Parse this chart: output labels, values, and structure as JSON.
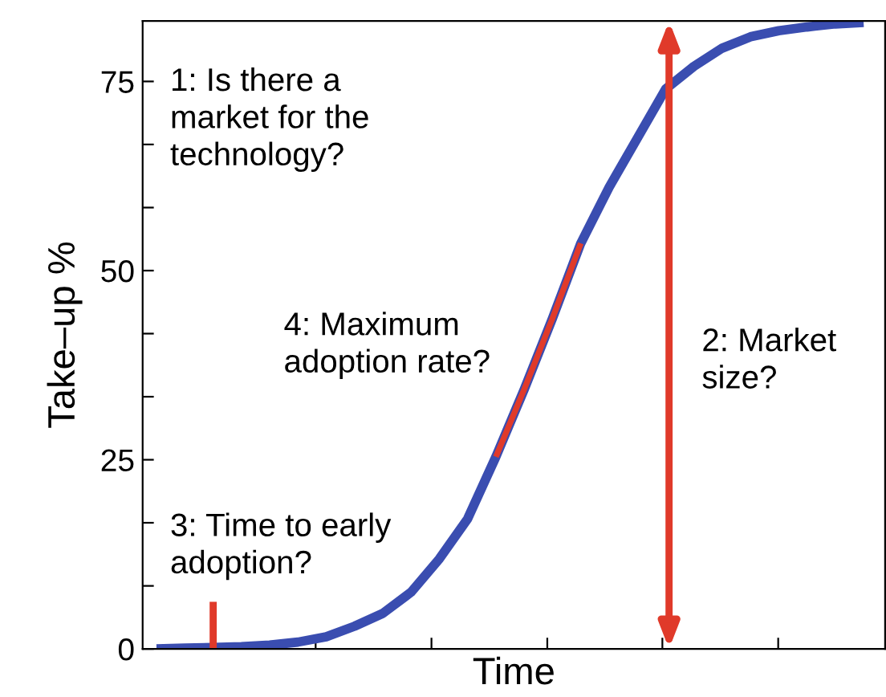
{
  "chart_data": {
    "type": "line",
    "xlabel": "Time",
    "ylabel": "Take–up %",
    "categories": [
      null,
      null,
      null,
      null,
      null,
      null,
      null,
      null,
      null,
      null,
      null,
      null,
      null,
      null,
      null,
      null,
      null,
      null,
      null,
      null,
      null,
      null,
      null,
      null,
      null,
      null
    ],
    "ylim": [
      0,
      83
    ],
    "yticks": [
      0,
      {
        "value": 8.33,
        "label": null
      },
      {
        "value": 16.67,
        "label": null
      },
      25,
      {
        "value": 33.33,
        "label": null
      },
      {
        "value": 41.67,
        "label": null
      },
      50,
      {
        "value": 58.33,
        "label": null
      },
      {
        "value": 66.67,
        "label": null
      },
      75
    ],
    "series": [
      {
        "color": "#3a4db0",
        "values": [
          0,
          0.1,
          0.2,
          0.3,
          0.5,
          0.9,
          1.6,
          3.0,
          4.7,
          7.5,
          11.9,
          17.2,
          25.4,
          34.3,
          43.7,
          53.6,
          61.0,
          67.5,
          74.0,
          77.0,
          79.4,
          80.9,
          81.7,
          82.2,
          82.6,
          82.8
        ]
      },
      {
        "color": "#e03a2a",
        "values": [
          null,
          null,
          null,
          null,
          null,
          null,
          null,
          null,
          null,
          null,
          null,
          null,
          25.4,
          34.3,
          43.7,
          53.6,
          null,
          null,
          null,
          null,
          null,
          null,
          null,
          null,
          null,
          null
        ]
      }
    ],
    "annotations": [
      "1: Is there a\nmarket for the\ntechnology?",
      "2: Market\nsize?",
      "3: Time to early\nadoption?",
      "4: Maximum\nadoption rate?"
    ],
    "grid": false,
    "marker": "none",
    "line_style": "solid"
  }
}
